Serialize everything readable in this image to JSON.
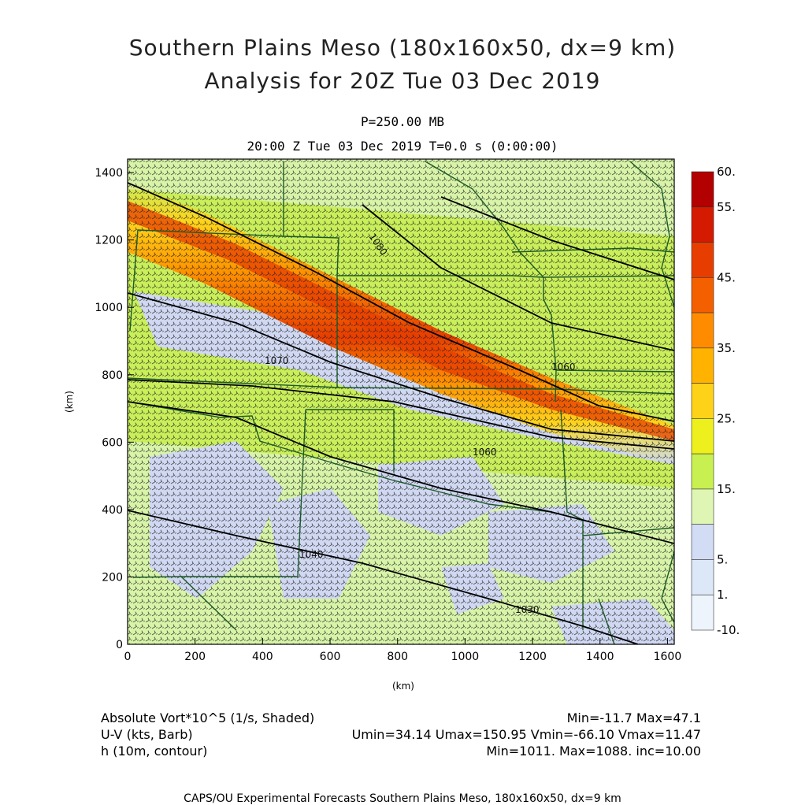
{
  "title_line1": "Southern Plains Meso (180x160x50, dx=9 km)",
  "title_line2": "Analysis for 20Z Tue 03 Dec 2019",
  "level": "P=250.00 MB",
  "time": "20:00 Z Tue 03 Dec 2019    T=0.0 s (0:00:00)",
  "axes": {
    "x_unit": "(km)",
    "y_unit": "(km)",
    "x_ticks": [
      "0",
      "200",
      "400",
      "600",
      "800",
      "1000",
      "1200",
      "1400",
      "1600"
    ],
    "y_ticks": [
      "0",
      "200",
      "400",
      "600",
      "800",
      "1000",
      "1200",
      "1400"
    ],
    "x_range": [
      0,
      1620
    ],
    "y_range": [
      0,
      1440
    ]
  },
  "colorbar": {
    "labels": [
      "60.",
      "55.",
      "45.",
      "35.",
      "25.",
      "15.",
      "5.",
      "1.",
      "-10."
    ],
    "colors": [
      "#b30000",
      "#d41a00",
      "#e83d00",
      "#f45f00",
      "#ff8c00",
      "#ffb300",
      "#ffd21a",
      "#eef01e",
      "#c8f050",
      "#dff5b4",
      "#d2dcf5",
      "#dce8f8",
      "#eef4fc"
    ]
  },
  "contour_labels": [
    {
      "text": "1060",
      "x": 1315,
      "y": 820
    },
    {
      "text": "1070",
      "x": 455,
      "y": 805
    },
    {
      "text": "1060",
      "x": 1080,
      "y": 560
    },
    {
      "text": "1040",
      "x": 560,
      "y": 260
    },
    {
      "text": "1030",
      "x": 1200,
      "y": 95
    },
    {
      "text": "1080",
      "x": 720,
      "y": 1225
    }
  ],
  "legend": {
    "left": [
      "Absolute Vort*10^5 (1/s, Shaded)",
      "U-V (kts, Barb)",
      "h (10m, contour)"
    ],
    "right": [
      "Min=-11.7 Max=47.1",
      "Umin=34.14 Umax=150.95 Vmin=-66.10 Vmax=11.47",
      "Min=1011. Max=1088. inc=10.00"
    ]
  },
  "credit": "CAPS/OU Experimental Forecasts  Southern Plains Meso, 180x160x50, dx=9 km",
  "colors": {
    "background_green": "#c9ef5a",
    "light_green": "#d8f4a8",
    "lavender": "#d0d8f2",
    "border": "#1e5a28",
    "barb": "#202020"
  }
}
